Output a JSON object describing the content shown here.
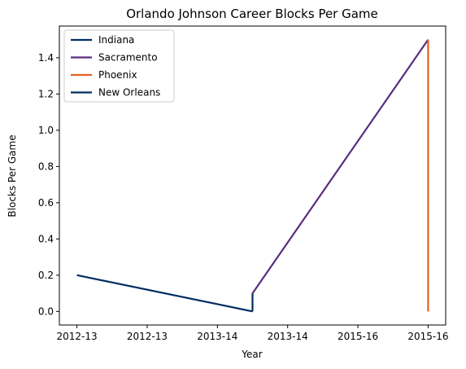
{
  "chart_data": {
    "type": "line",
    "title": "Orlando Johnson Career Blocks Per Game",
    "xlabel": "Year",
    "ylabel": "Blocks Per Game",
    "x_tick_labels": [
      "2012-13",
      "2012-13",
      "2013-14",
      "2013-14",
      "2015-16",
      "2015-16"
    ],
    "x_tick_values": [
      0,
      0.5,
      1,
      1.5,
      2,
      2.5
    ],
    "xlim": [
      -0.125,
      2.625
    ],
    "y_tick_labels": [
      "0.0",
      "0.2",
      "0.4",
      "0.6",
      "0.8",
      "1.0",
      "1.2",
      "1.4"
    ],
    "y_tick_values": [
      0,
      0.2,
      0.4,
      0.6,
      0.8,
      1.0,
      1.2,
      1.4
    ],
    "ylim": [
      -0.075,
      1.575
    ],
    "legend_position": "top-left",
    "series": [
      {
        "name": "Indiana",
        "color": "#002D62",
        "points": [
          [
            0,
            0.2
          ],
          [
            1.25,
            0.0
          ]
        ]
      },
      {
        "name": "Sacramento",
        "color": "#5A2D81",
        "points": [
          [
            1.25,
            0.1
          ],
          [
            2.5,
            1.5
          ]
        ]
      },
      {
        "name": "Phoenix",
        "color": "#E56020",
        "points": [
          [
            2.5,
            1.5
          ],
          [
            2.5,
            0.0
          ]
        ]
      },
      {
        "name": "New Orleans",
        "color": "#002B5C",
        "points": [
          [
            1.25,
            0.0
          ],
          [
            1.25,
            0.1
          ]
        ]
      }
    ]
  }
}
